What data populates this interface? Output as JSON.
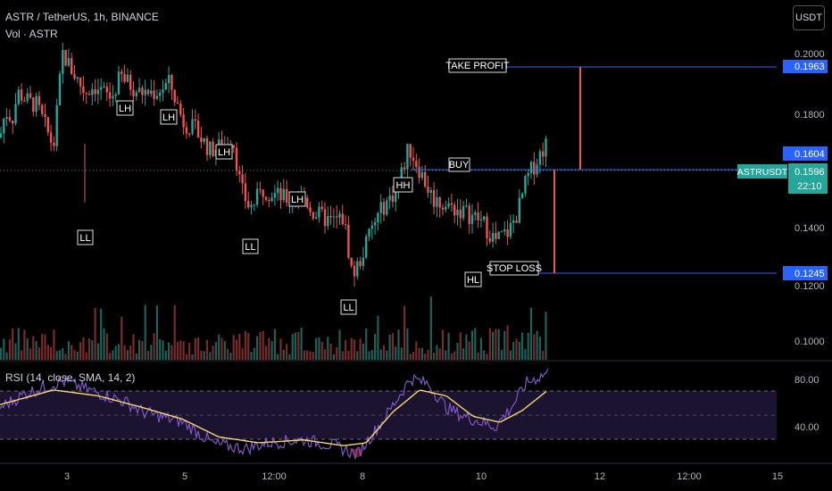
{
  "header": {
    "symbol_line": "ASTR / TetherUS, 1h, BINANCE",
    "volume_line": "Vol · ASTR",
    "currency_button": "USDT"
  },
  "rsi": {
    "label": "RSI (14, close, SMA, 14, 2)"
  },
  "price_axis": {
    "ticks": [
      "0.2000",
      "0.1800",
      "0.1400",
      "0.1200",
      "0.1000"
    ],
    "levels": {
      "take_profit": "0.1963",
      "entry": "0.1604",
      "stop": "0.1245",
      "last": "0.1596",
      "countdown": "22:10",
      "symbol": "ASTRUSDT"
    }
  },
  "rsi_axis": {
    "ticks": [
      "80.00",
      "40.00"
    ]
  },
  "time_axis": {
    "ticks": [
      "3",
      "5",
      "12:00",
      "8",
      "10",
      "12",
      "12:00",
      "15"
    ]
  },
  "annotations": {
    "take_profit": "TAKE PROFIT",
    "buy": "BUY",
    "stop_loss": "STOP LOSS",
    "swing_labels": [
      "LL",
      "LH",
      "LH",
      "LH",
      "LL",
      "LH",
      "LL",
      "HH",
      "HL"
    ]
  },
  "colors": {
    "up": "#26a69a",
    "down": "#ef5350",
    "level_line": "#2962ff",
    "rsi_line": "#7e57c2",
    "rsi_sma": "#f5d76e",
    "last_price": "#26a69a"
  },
  "chart_data": {
    "type": "candlestick",
    "price_range": [
      0.093,
      0.2045
    ],
    "rsi_range": [
      20,
      90
    ],
    "levels": {
      "take_profit": 0.1963,
      "entry": 0.1604,
      "stop_loss": 0.1245,
      "last": 0.1596
    },
    "path_anchors": [
      [
        0,
        0.162
      ],
      [
        6,
        0.17
      ],
      [
        14,
        0.168
      ],
      [
        20,
        0.176
      ],
      [
        32,
        0.173
      ],
      [
        41,
        0.172
      ],
      [
        60,
        0.159
      ],
      [
        70,
        0.188
      ],
      [
        80,
        0.183
      ],
      [
        95,
        0.176
      ],
      [
        105,
        0.178
      ],
      [
        125,
        0.174
      ],
      [
        135,
        0.181
      ],
      [
        155,
        0.176
      ],
      [
        175,
        0.176
      ],
      [
        190,
        0.179
      ],
      [
        205,
        0.167
      ],
      [
        220,
        0.164
      ],
      [
        235,
        0.158
      ],
      [
        255,
        0.16
      ],
      [
        260,
        0.163
      ],
      [
        270,
        0.146
      ],
      [
        280,
        0.14
      ],
      [
        295,
        0.146
      ],
      [
        320,
        0.143
      ],
      [
        340,
        0.144
      ],
      [
        350,
        0.139
      ],
      [
        370,
        0.136
      ],
      [
        385,
        0.137
      ],
      [
        395,
        0.119
      ],
      [
        405,
        0.125
      ],
      [
        415,
        0.133
      ],
      [
        430,
        0.141
      ],
      [
        445,
        0.146
      ],
      [
        458,
        0.159
      ],
      [
        470,
        0.152
      ],
      [
        485,
        0.143
      ],
      [
        500,
        0.141
      ],
      [
        520,
        0.139
      ],
      [
        540,
        0.136
      ],
      [
        555,
        0.13
      ],
      [
        570,
        0.133
      ],
      [
        580,
        0.139
      ],
      [
        590,
        0.149
      ],
      [
        605,
        0.157
      ],
      [
        614,
        0.161
      ]
    ],
    "rsi_anchors": [
      [
        0,
        58
      ],
      [
        30,
        68
      ],
      [
        70,
        76
      ],
      [
        100,
        70
      ],
      [
        140,
        62
      ],
      [
        160,
        55
      ],
      [
        205,
        48
      ],
      [
        240,
        33
      ],
      [
        275,
        30
      ],
      [
        300,
        34
      ],
      [
        340,
        36
      ],
      [
        375,
        32
      ],
      [
        400,
        26
      ],
      [
        430,
        50
      ],
      [
        460,
        78
      ],
      [
        480,
        74
      ],
      [
        500,
        58
      ],
      [
        520,
        52
      ],
      [
        540,
        48
      ],
      [
        555,
        45
      ],
      [
        575,
        60
      ],
      [
        590,
        75
      ],
      [
        614,
        82
      ]
    ],
    "rsi_sma_anchors": [
      [
        0,
        60
      ],
      [
        60,
        70
      ],
      [
        110,
        66
      ],
      [
        160,
        58
      ],
      [
        205,
        50
      ],
      [
        245,
        38
      ],
      [
        290,
        34
      ],
      [
        340,
        36
      ],
      [
        385,
        32
      ],
      [
        410,
        34
      ],
      [
        440,
        55
      ],
      [
        470,
        70
      ],
      [
        500,
        66
      ],
      [
        530,
        52
      ],
      [
        560,
        48
      ],
      [
        585,
        56
      ],
      [
        614,
        70
      ]
    ]
  }
}
